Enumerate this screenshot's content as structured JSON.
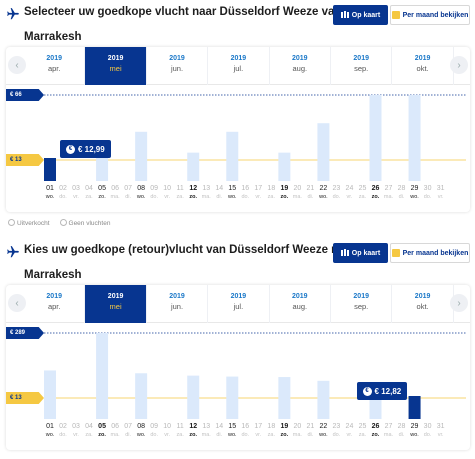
{
  "sections": [
    {
      "title_line1": "Selecteer uw goedkope vlucht naar Düsseldorf Weeze van",
      "title_line2": "Marrakesh",
      "btn_map": "Op kaart",
      "btn_month": "Per maand bekijken",
      "months": [
        {
          "year": "2019",
          "name": "apr."
        },
        {
          "year": "2019",
          "name": "mei",
          "active": true
        },
        {
          "year": "2019",
          "name": "jun."
        },
        {
          "year": "2019",
          "name": "jul."
        },
        {
          "year": "2019",
          "name": "aug."
        },
        {
          "year": "2019",
          "name": "sep."
        },
        {
          "year": "2019",
          "name": "okt."
        }
      ],
      "max_label": "€ 66",
      "min_label": "€ 13",
      "tooltip": "€ 12,99",
      "chart_data": {
        "type": "bar",
        "max_price": 66,
        "min_price": 13,
        "days": [
          "01",
          "02",
          "03",
          "04",
          "05",
          "06",
          "07",
          "08",
          "09",
          "10",
          "11",
          "12",
          "13",
          "14",
          "15",
          "16",
          "17",
          "18",
          "19",
          "20",
          "21",
          "22",
          "23",
          "24",
          "25",
          "26",
          "27",
          "28",
          "29",
          "30",
          "31"
        ],
        "weekdays": [
          "wo.",
          "do.",
          "vr.",
          "za.",
          "zo.",
          "ma.",
          "di.",
          "wo.",
          "do.",
          "vr.",
          "za.",
          "zo.",
          "ma.",
          "di.",
          "wo.",
          "do.",
          "vr.",
          "za.",
          "zo.",
          "ma.",
          "di.",
          "wo.",
          "do.",
          "vr.",
          "za.",
          "zo.",
          "ma.",
          "di.",
          "wo.",
          "do.",
          "vr."
        ],
        "flight_days": [
          1,
          5,
          8,
          12,
          15,
          19,
          22,
          26,
          29
        ],
        "bold_days": [
          12,
          19,
          26
        ],
        "selected_day": 1,
        "values": [
          12.99,
          null,
          null,
          null,
          20,
          null,
          null,
          36,
          null,
          null,
          null,
          19,
          null,
          null,
          36,
          null,
          null,
          null,
          19,
          null,
          null,
          43,
          null,
          null,
          null,
          66,
          null,
          null,
          66,
          null,
          null
        ]
      }
    },
    {
      "title_line1": "Kies uw goedkope (retour)vlucht van Düsseldorf Weeze naar",
      "title_line2": "Marrakesh",
      "btn_map": "Op kaart",
      "btn_month": "Per maand bekijken",
      "months": [
        {
          "year": "2019",
          "name": "apr."
        },
        {
          "year": "2019",
          "name": "mei",
          "active": true
        },
        {
          "year": "2019",
          "name": "jun."
        },
        {
          "year": "2019",
          "name": "jul."
        },
        {
          "year": "2019",
          "name": "aug."
        },
        {
          "year": "2019",
          "name": "sep."
        },
        {
          "year": "2019",
          "name": "okt."
        }
      ],
      "max_label": "€ 289",
      "min_label": "€ 13",
      "tooltip": "€ 12,82",
      "chart_data": {
        "type": "bar",
        "max_price": 289,
        "min_price": 13,
        "days": [
          "01",
          "02",
          "03",
          "04",
          "05",
          "06",
          "07",
          "08",
          "09",
          "10",
          "11",
          "12",
          "13",
          "14",
          "15",
          "16",
          "17",
          "18",
          "19",
          "20",
          "21",
          "22",
          "23",
          "24",
          "25",
          "26",
          "27",
          "28",
          "29",
          "30",
          "31"
        ],
        "weekdays": [
          "wo.",
          "do.",
          "vr.",
          "za.",
          "zo.",
          "ma.",
          "di.",
          "wo.",
          "do.",
          "vr.",
          "za.",
          "zo.",
          "ma.",
          "di.",
          "wo.",
          "do.",
          "vr.",
          "za.",
          "zo.",
          "ma.",
          "di.",
          "wo.",
          "do.",
          "vr.",
          "za.",
          "zo.",
          "ma.",
          "di.",
          "wo.",
          "do.",
          "vr."
        ],
        "flight_days": [
          1,
          5,
          8,
          12,
          15,
          19,
          22,
          26,
          29
        ],
        "bold_days": [
          5,
          12,
          19,
          26
        ],
        "selected_day": 29,
        "values": [
          130,
          null,
          null,
          null,
          289,
          null,
          null,
          118,
          null,
          null,
          null,
          108,
          null,
          null,
          104,
          null,
          null,
          null,
          102,
          null,
          null,
          86,
          null,
          null,
          null,
          55,
          null,
          null,
          12.82,
          null,
          null
        ]
      }
    }
  ],
  "legend": {
    "sold_out": "Uitverkocht",
    "no_flights": "Geen vluchten"
  },
  "colors": {
    "navy": "#073590",
    "yellow": "#f5c842",
    "light_bar": "#dbe9fb",
    "link_blue": "#1b78c8"
  }
}
